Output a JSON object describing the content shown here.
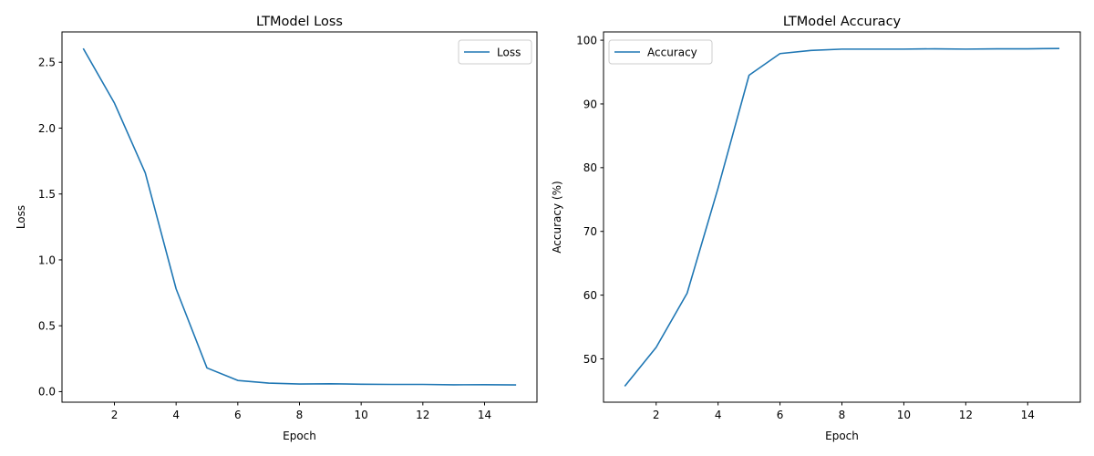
{
  "chart_data": [
    {
      "type": "line",
      "title": "LTModel Loss",
      "xlabel": "Epoch",
      "ylabel": "Loss",
      "xlim": [
        0.3,
        15.7
      ],
      "ylim": [
        -0.08,
        2.73
      ],
      "xticks": [
        2,
        4,
        6,
        8,
        10,
        12,
        14
      ],
      "yticks": [
        0.0,
        0.5,
        1.0,
        1.5,
        2.0,
        2.5
      ],
      "ytick_decimals": 1,
      "legend": "top-right",
      "grid": false,
      "series": [
        {
          "name": "Loss",
          "color": "#1f77b4",
          "x": [
            1,
            2,
            3,
            4,
            5,
            6,
            7,
            8,
            9,
            10,
            11,
            12,
            13,
            14,
            15
          ],
          "y": [
            2.6,
            2.19,
            1.66,
            0.78,
            0.18,
            0.085,
            0.065,
            0.058,
            0.06,
            0.056,
            0.055,
            0.055,
            0.052,
            0.053,
            0.051
          ]
        }
      ]
    },
    {
      "type": "line",
      "title": "LTModel Accuracy",
      "xlabel": "Epoch",
      "ylabel": "Accuracy (%)",
      "xlim": [
        0.3,
        15.7
      ],
      "ylim": [
        43.2,
        101.3
      ],
      "xticks": [
        2,
        4,
        6,
        8,
        10,
        12,
        14
      ],
      "yticks": [
        50,
        60,
        70,
        80,
        90,
        100
      ],
      "ytick_decimals": 0,
      "legend": "top-left",
      "grid": false,
      "series": [
        {
          "name": "Accuracy",
          "color": "#1f77b4",
          "x": [
            1,
            2,
            3,
            4,
            5,
            6,
            7,
            8,
            9,
            10,
            11,
            12,
            13,
            14,
            15
          ],
          "y": [
            45.8,
            51.8,
            60.3,
            76.8,
            94.5,
            97.9,
            98.4,
            98.6,
            98.6,
            98.6,
            98.65,
            98.6,
            98.65,
            98.65,
            98.7
          ]
        }
      ]
    }
  ]
}
